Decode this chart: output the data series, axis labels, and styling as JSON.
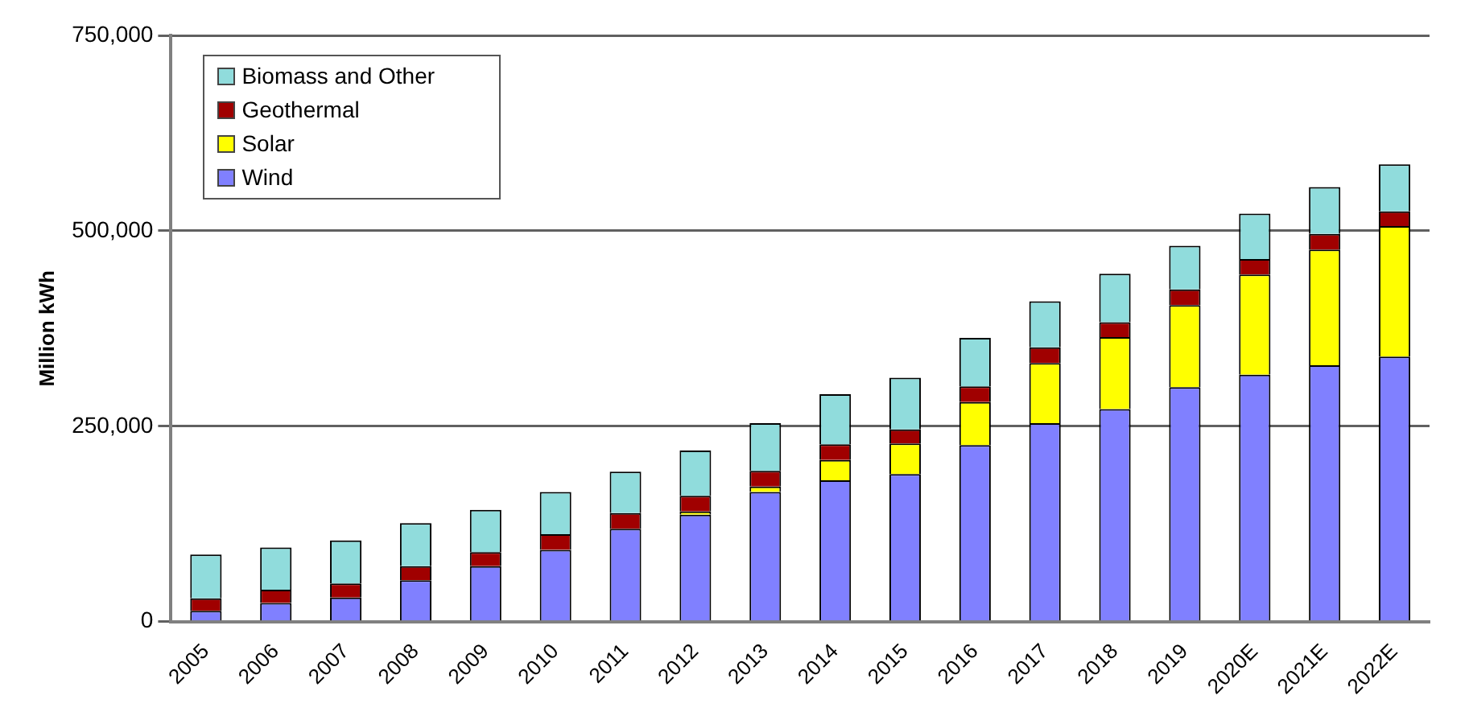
{
  "chart_data": {
    "type": "bar",
    "stacked": true,
    "ylabel": "Million kWh",
    "categories": [
      "2005",
      "2006",
      "2007",
      "2008",
      "2009",
      "2010",
      "2011",
      "2012",
      "2013",
      "2014",
      "2015",
      "2016",
      "2017",
      "2018",
      "2019",
      "2020E",
      "2021E",
      "2022E"
    ],
    "series": [
      {
        "name": "Wind",
        "color": "#8080ff",
        "values": [
          14000,
          24000,
          31000,
          53000,
          71000,
          92000,
          119000,
          137000,
          166000,
          181000,
          189000,
          226000,
          254000,
          272000,
          300000,
          316000,
          328000,
          339000
        ]
      },
      {
        "name": "Solar",
        "color": "#ffff00",
        "values": [
          null,
          null,
          null,
          null,
          null,
          null,
          null,
          4000,
          7000,
          26000,
          39000,
          55000,
          77000,
          92000,
          105000,
          128000,
          148000,
          167000
        ]
      },
      {
        "name": "Geothermal",
        "color": "#a00000",
        "values": [
          16000,
          17000,
          18000,
          18000,
          18000,
          20000,
          20000,
          20000,
          20000,
          20000,
          18000,
          20000,
          20000,
          19000,
          20000,
          20000,
          20000,
          19000
        ]
      },
      {
        "name": "Biomass and Other",
        "color": "#90dcdc",
        "values": [
          56000,
          54000,
          55000,
          55000,
          54000,
          54000,
          53000,
          58000,
          61000,
          64000,
          66000,
          62000,
          59000,
          62000,
          56000,
          58000,
          60000,
          60000
        ]
      }
    ],
    "ylim": [
      0,
      750000
    ],
    "yticks": [
      {
        "value": 0,
        "label": "0"
      },
      {
        "value": 250000,
        "label": "250,000"
      },
      {
        "value": 500000,
        "label": "500,000"
      },
      {
        "value": 750000,
        "label": "750,000"
      }
    ],
    "grid": "y",
    "legend": "top left"
  }
}
